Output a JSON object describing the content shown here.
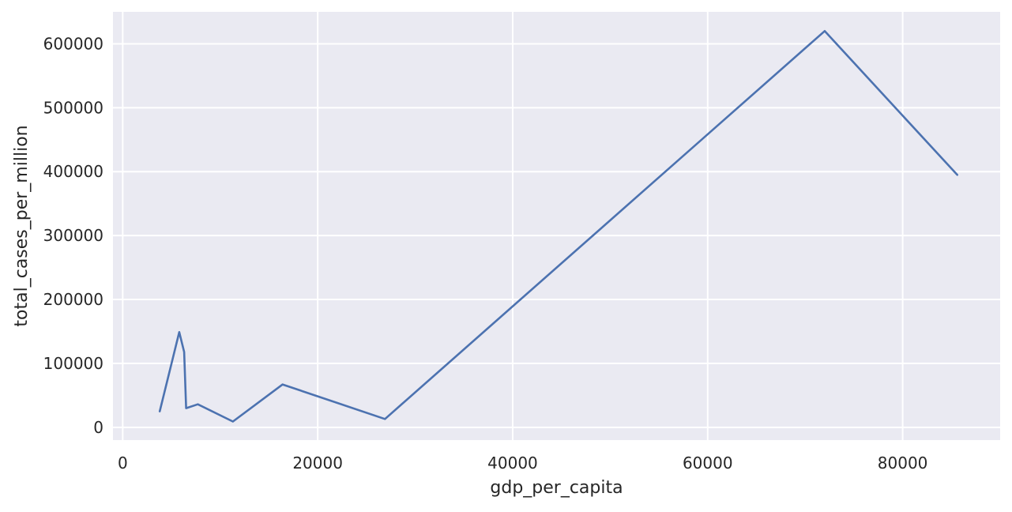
{
  "chart_data": {
    "type": "line",
    "title": "",
    "xlabel": "gdp_per_capita",
    "ylabel": "total_cases_per_million",
    "xlim": [
      -1000,
      90000
    ],
    "ylim": [
      -20000,
      650000
    ],
    "x_ticks": [
      0,
      20000,
      40000,
      60000,
      80000
    ],
    "y_ticks": [
      0,
      100000,
      200000,
      300000,
      400000,
      500000,
      600000
    ],
    "grid": true,
    "legend": "none",
    "colors": {
      "line": "#4c72b0",
      "background": "#eaeaf2",
      "grid": "#ffffff",
      "text": "#262626"
    },
    "series": [
      {
        "x": [
          3800,
          5800,
          6300,
          6500,
          7700,
          11300,
          16400,
          26900,
          72000,
          85600
        ],
        "values": [
          25000,
          149000,
          118000,
          30000,
          36000,
          9000,
          67000,
          13000,
          620000,
          395000
        ]
      }
    ]
  }
}
